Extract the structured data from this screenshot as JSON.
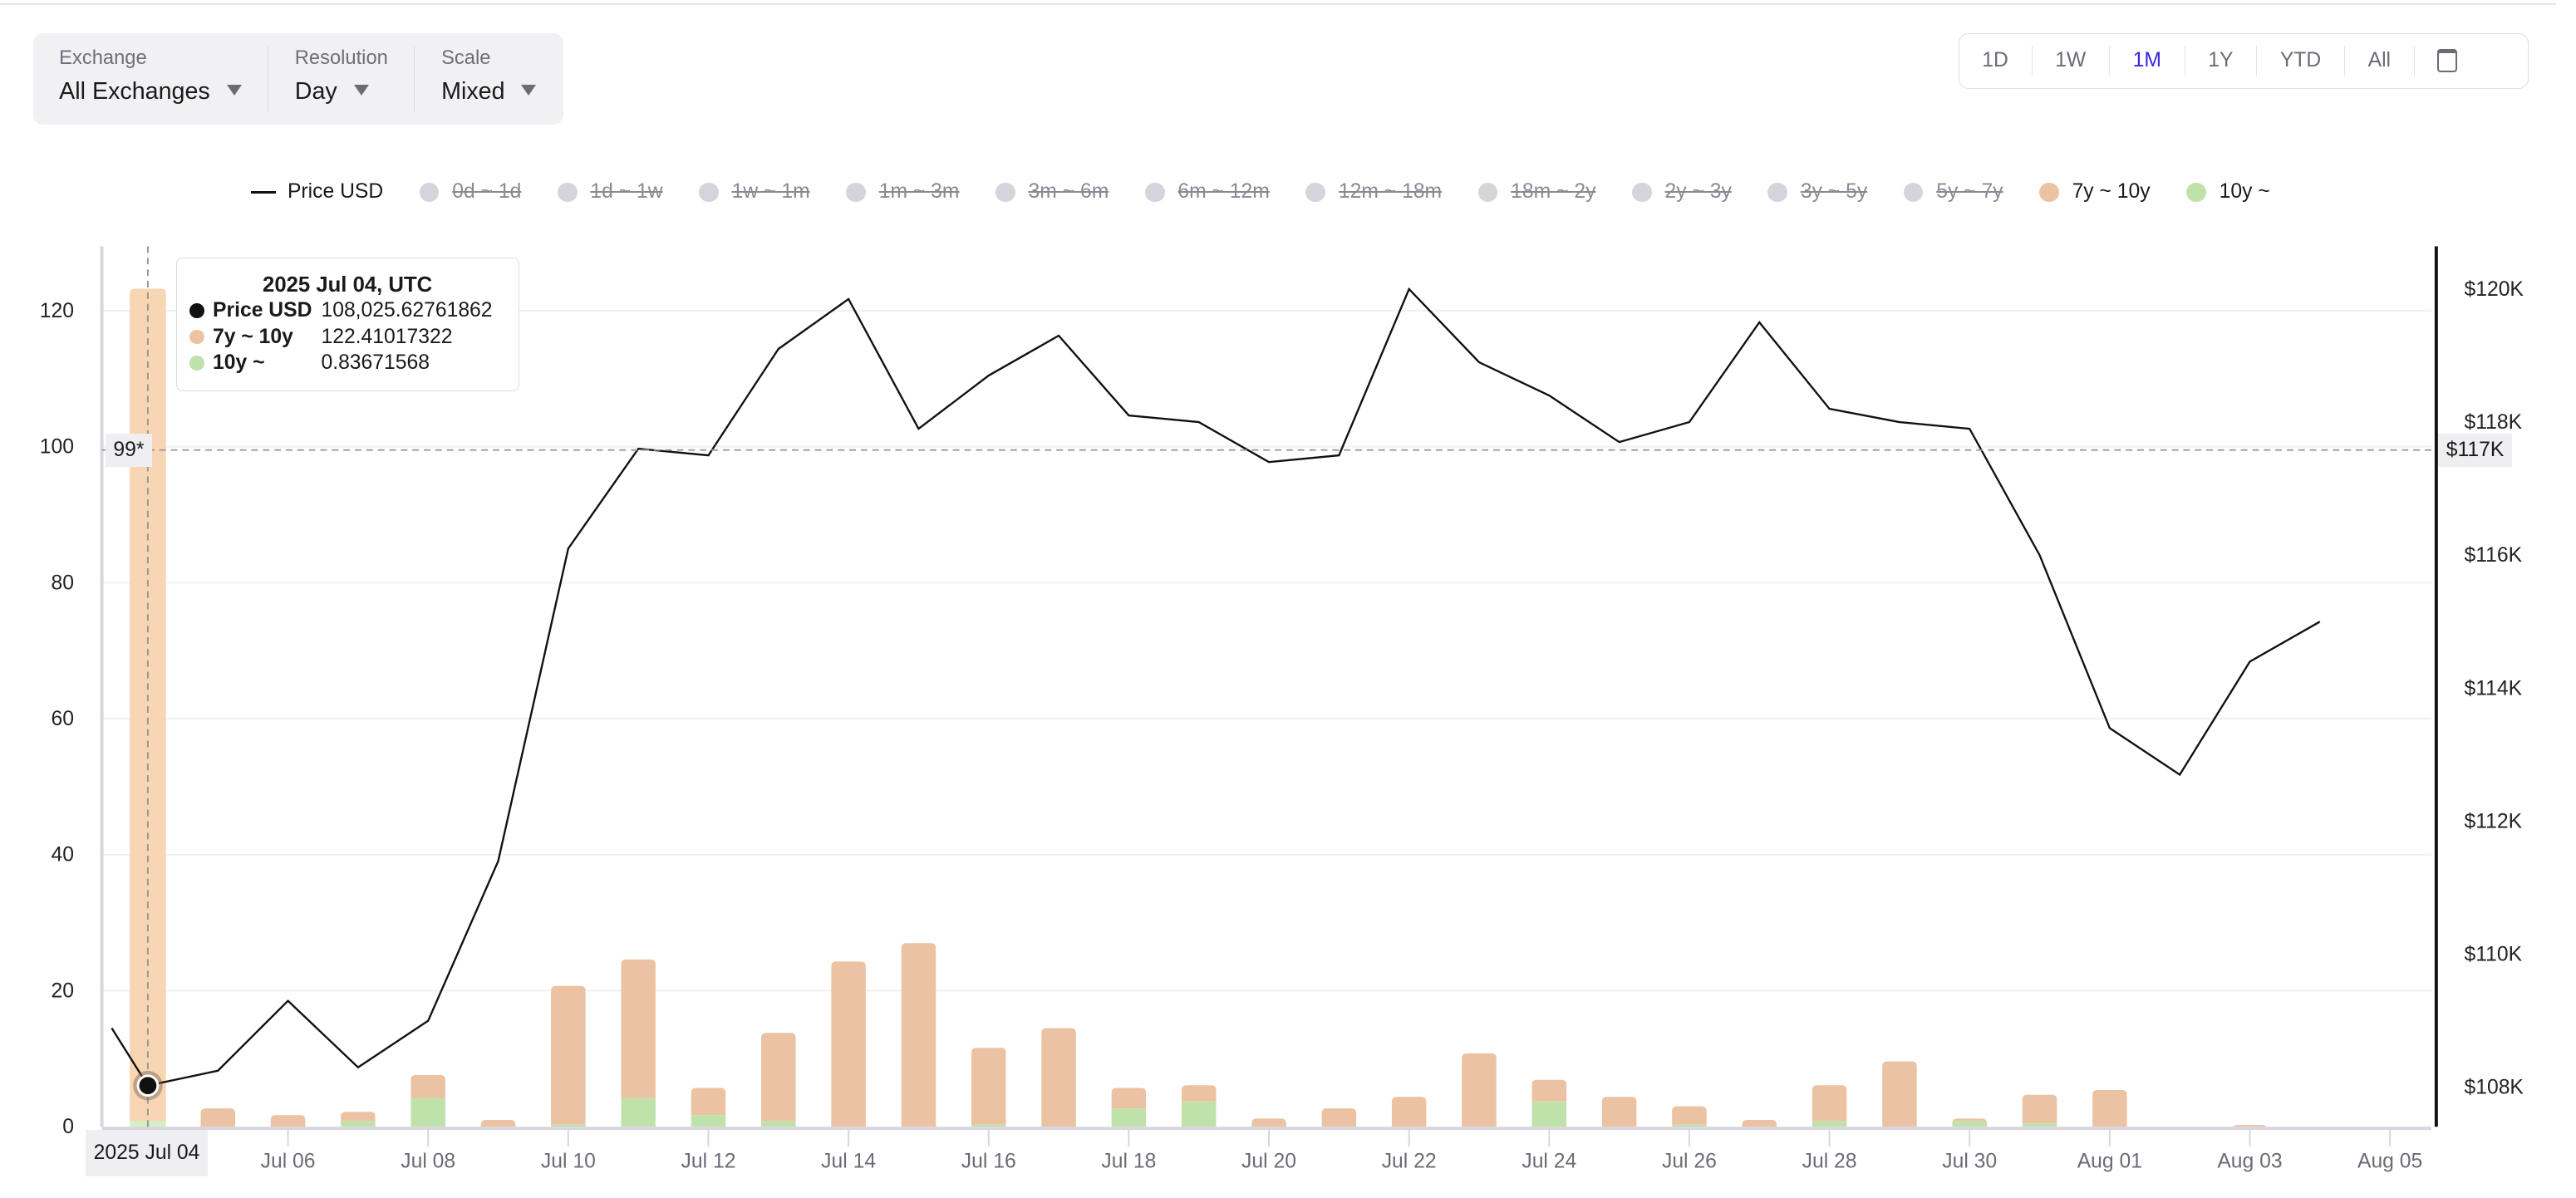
{
  "controls": [
    {
      "label": "Exchange",
      "value": "All Exchanges"
    },
    {
      "label": "Resolution",
      "value": "Day"
    },
    {
      "label": "Scale",
      "value": "Mixed"
    }
  ],
  "timeframes": {
    "items": [
      "1D",
      "1W",
      "1M",
      "1Y",
      "YTD",
      "All"
    ],
    "active": "1M",
    "calendar_icon": "calendar-icon"
  },
  "legend": [
    {
      "label": "Price USD",
      "type": "line",
      "enabled": true,
      "color": "#111111"
    },
    {
      "label": "0d ~ 1d",
      "enabled": false
    },
    {
      "label": "1d ~ 1w",
      "enabled": false
    },
    {
      "label": "1w ~ 1m",
      "enabled": false
    },
    {
      "label": "1m ~ 3m",
      "enabled": false
    },
    {
      "label": "3m ~ 6m",
      "enabled": false
    },
    {
      "label": "6m ~ 12m",
      "enabled": false
    },
    {
      "label": "12m ~ 18m",
      "enabled": false
    },
    {
      "label": "18m ~ 2y",
      "enabled": false
    },
    {
      "label": "2y ~ 3y",
      "enabled": false
    },
    {
      "label": "3y ~ 5y",
      "enabled": false
    },
    {
      "label": "5y ~ 7y",
      "enabled": false
    },
    {
      "label": "7y ~ 10y",
      "enabled": true,
      "color": "#ecc3a2"
    },
    {
      "label": "10y ~",
      "enabled": true,
      "color": "#bfe2ab"
    }
  ],
  "tooltip": {
    "title": "2025 Jul 04, UTC",
    "rows": [
      {
        "name": "Price USD",
        "value": "108,025.62761862",
        "color": "#111111"
      },
      {
        "name": "7y ~ 10y",
        "value": "122.41017322",
        "color": "#ecc3a2"
      },
      {
        "name": "10y ~",
        "value": "0.83671568",
        "color": "#bfe2ab"
      }
    ]
  },
  "crosshair": {
    "left_label": "99*",
    "right_label": "$117K",
    "x_label": "2025 Jul 04"
  },
  "chart_data": {
    "type": "bar+line",
    "x": [
      "Jul 04",
      "Jul 05",
      "Jul 06",
      "Jul 07",
      "Jul 08",
      "Jul 09",
      "Jul 10",
      "Jul 11",
      "Jul 12",
      "Jul 13",
      "Jul 14",
      "Jul 15",
      "Jul 16",
      "Jul 17",
      "Jul 18",
      "Jul 19",
      "Jul 20",
      "Jul 21",
      "Jul 22",
      "Jul 23",
      "Jul 24",
      "Jul 25",
      "Jul 26",
      "Jul 27",
      "Jul 28",
      "Jul 29",
      "Jul 30",
      "Jul 31",
      "Aug 01",
      "Aug 02",
      "Aug 03",
      "Aug 04"
    ],
    "x_ticks": [
      "Jul 06",
      "Jul 08",
      "Jul 10",
      "Jul 12",
      "Jul 14",
      "Jul 16",
      "Jul 18",
      "Jul 20",
      "Jul 22",
      "Jul 24",
      "Jul 26",
      "Jul 28",
      "Jul 30",
      "Aug 01",
      "Aug 03",
      "Aug 05"
    ],
    "left_axis": {
      "ticks": [
        0,
        20,
        40,
        60,
        80,
        100,
        120
      ],
      "range": [
        0,
        128
      ]
    },
    "right_axis": {
      "ticks": [
        "$108K",
        "$110K",
        "$112K",
        "$114K",
        "$116K",
        "$118K",
        "$120K"
      ],
      "tick_values": [
        108000,
        110000,
        112000,
        114000,
        116000,
        118000,
        120000
      ],
      "range": [
        107400,
        120700
      ]
    },
    "grid": true,
    "series": [
      {
        "name": "7y ~ 10y",
        "type": "bar",
        "stack": true,
        "axis": "left",
        "color": "#ecc3a2",
        "values": [
          122.41,
          2.7,
          1.7,
          1.4,
          3.4,
          1.0,
          20.4,
          20.4,
          4.0,
          13.0,
          24.3,
          27.0,
          11.3,
          14.5,
          3.0,
          2.4,
          1.2,
          2.7,
          4.4,
          10.8,
          3.2,
          4.4,
          2.7,
          1.0,
          5.3,
          9.6,
          0.4,
          4.2,
          5.4,
          0,
          0.25,
          0
        ]
      },
      {
        "name": "10y ~",
        "type": "bar",
        "stack": true,
        "axis": "left",
        "color": "#bfe2ab",
        "values": [
          0.84,
          0,
          0,
          0.8,
          4.2,
          0,
          0.3,
          4.2,
          1.7,
          0.8,
          0,
          0,
          0.3,
          0,
          2.7,
          3.7,
          0,
          0,
          0,
          0,
          3.7,
          0,
          0.3,
          0,
          0.8,
          0,
          0.8,
          0.5,
          0,
          0,
          0,
          0
        ]
      },
      {
        "name": "Price USD",
        "type": "line",
        "axis": "right",
        "color": "#111111",
        "previous": {
          "x": "Jul 03",
          "value": 109700
        },
        "values": [
          108025.63,
          108250,
          109300,
          108300,
          109000,
          111400,
          116100,
          117600,
          117500,
          119100,
          119850,
          117900,
          118700,
          119300,
          118100,
          118000,
          117400,
          117500,
          120000,
          118900,
          118400,
          117700,
          118000,
          119500,
          118200,
          118000,
          117900,
          116000,
          113400,
          112700,
          114400,
          115000
        ]
      }
    ]
  }
}
